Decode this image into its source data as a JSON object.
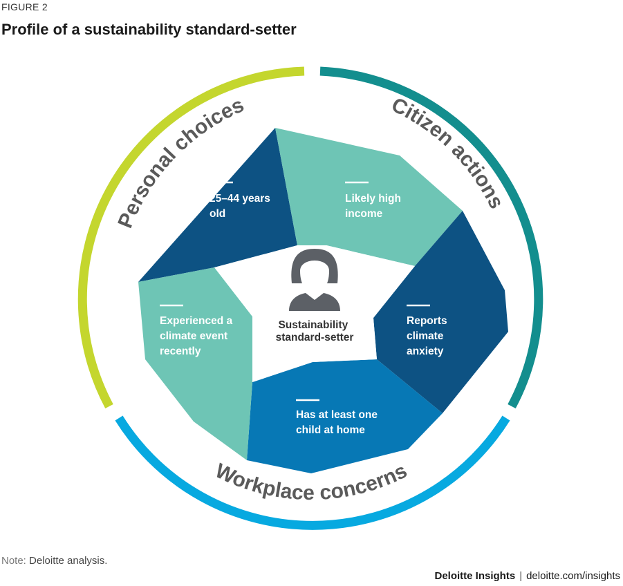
{
  "figure_label": "FIGURE 2",
  "title": "Profile of a sustainability standard-setter",
  "center": {
    "line1": "Sustainability",
    "line2": "standard-setter",
    "icon": "person-icon"
  },
  "ring": {
    "personal": "Personal choices",
    "citizen": "Citizen actions",
    "workplace": "Workplace concerns"
  },
  "segments": {
    "age": {
      "line1": "25–44 years",
      "line2": "old"
    },
    "income": {
      "line1": "Likely high",
      "line2": "income"
    },
    "anxiety": {
      "line1": "Reports",
      "line2": "climate",
      "line3": "anxiety"
    },
    "child": {
      "line1": "Has at least one",
      "line2": "child at home"
    },
    "climate_event": {
      "line1": "Experienced a",
      "line2": "climate event",
      "line3": "recently"
    }
  },
  "colors": {
    "personal_ring": "#c4d62e",
    "citizen_ring": "#138e8e",
    "workplace_ring": "#07a9e0",
    "dark_blue": "#0d5283",
    "mid_blue": "#0778b5",
    "teal": "#6ec5b5",
    "person": "#5c6066"
  },
  "note": {
    "label": "Note:",
    "text": "Deloitte analysis."
  },
  "footer": {
    "brand": "Deloitte Insights",
    "site": "deloitte.com/insights"
  }
}
